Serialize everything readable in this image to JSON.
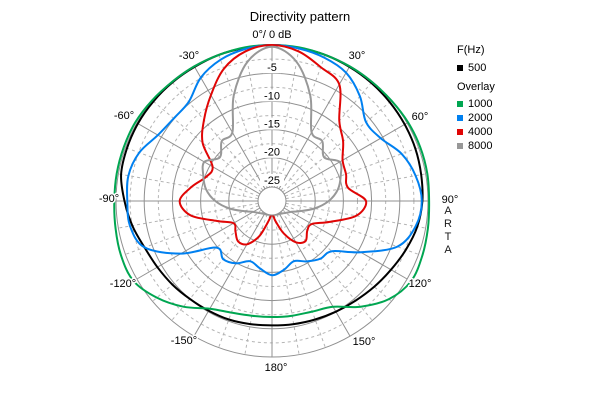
{
  "title": "Directivity pattern",
  "apex_label": "0°/ 0 dB",
  "brand_mark": "ARTA",
  "colors": {
    "background": "#ffffff",
    "grid_major": "#909090",
    "grid_minor": "#b5b5b5",
    "text": "#000000",
    "series_500": "#000000",
    "series_1000": "#00a651",
    "series_2000": "#0080f0",
    "series_4000": "#e00505",
    "series_8000": "#989898"
  },
  "legend": {
    "freq_header": "F(Hz)",
    "freq_items": [
      {
        "label": "500",
        "color": "#000000"
      }
    ],
    "overlay_header": "Overlay",
    "overlay_items": [
      {
        "label": "1000",
        "color": "#00a651"
      },
      {
        "label": "2000",
        "color": "#0080f0"
      },
      {
        "label": "4000",
        "color": "#e00505"
      },
      {
        "label": "8000",
        "color": "#989898"
      }
    ]
  },
  "chart_data": {
    "type": "line",
    "polar": true,
    "title": "Directivity pattern",
    "apex_label": "0°/ 0 dB",
    "units": {
      "angle": "deg",
      "radial": "dB"
    },
    "range_db": [
      0,
      -25
    ],
    "grid": {
      "major_ring_db": 5,
      "minor_ring_db": 2.5,
      "major_spoke_deg": 30,
      "minor_spoke_deg": 10
    },
    "radial_ticks": [
      {
        "db": -5,
        "text": "-5"
      },
      {
        "db": -10,
        "text": "-10"
      },
      {
        "db": -15,
        "text": "-15"
      },
      {
        "db": -20,
        "text": "-20"
      },
      {
        "db": -25,
        "text": "-25"
      }
    ],
    "angle_labels": [
      {
        "angle": -30,
        "text": "-30°"
      },
      {
        "angle": 30,
        "text": "30°"
      },
      {
        "angle": -60,
        "text": "-60°"
      },
      {
        "angle": 60,
        "text": "60°"
      },
      {
        "angle": -90,
        "text": "-90°"
      },
      {
        "angle": 90,
        "text": "90°"
      },
      {
        "angle": -120,
        "text": "-120°"
      },
      {
        "angle": 120,
        "text": "120°"
      },
      {
        "angle": -150,
        "text": "-150°"
      },
      {
        "angle": 150,
        "text": "150°"
      },
      {
        "angle": 180,
        "text": "180°"
      }
    ],
    "angles_deg": [
      -180,
      -170,
      -160,
      -150,
      -140,
      -130,
      -120,
      -110,
      -100,
      -90,
      -80,
      -70,
      -60,
      -50,
      -40,
      -30,
      -20,
      -10,
      0,
      10,
      20,
      30,
      40,
      50,
      60,
      70,
      80,
      90,
      100,
      110,
      120,
      130,
      140,
      150,
      160,
      170,
      180
    ],
    "series": [
      {
        "name": "500",
        "color": "#000000",
        "values": [
          -5.6,
          -5.5,
          -5.3,
          -5.2,
          -5.0,
          -4.6,
          -4.2,
          -3.6,
          -2.5,
          -1.5,
          -0.5,
          -0.3,
          -0.2,
          -0.2,
          -0.2,
          -0.2,
          -0.1,
          -0.1,
          0,
          -0.1,
          -0.1,
          -0.2,
          -0.3,
          -0.4,
          -0.5,
          -0.6,
          -0.8,
          -1.0,
          -1.5,
          -2.4,
          -3.3,
          -4.0,
          -4.6,
          -5.0,
          -5.3,
          -5.5,
          -5.6
        ]
      },
      {
        "name": "1000",
        "color": "#00a651",
        "values": [
          -7.1,
          -7.0,
          -6.6,
          -5.6,
          -3.2,
          -1.0,
          0.7,
          0.8,
          0.5,
          0.3,
          0.3,
          0.3,
          0.3,
          0.1,
          -0.1,
          -0.1,
          -0.1,
          0,
          0,
          0,
          -0.1,
          -0.1,
          -0.1,
          0,
          0.2,
          0.3,
          0.3,
          0.2,
          0.4,
          0.7,
          0.8,
          -0.6,
          -3.2,
          -6.0,
          -6.8,
          -7.0,
          -7.1
        ]
      },
      {
        "name": "2000",
        "color": "#0080f0",
        "values": [
          -14.5,
          -15.5,
          -16.3,
          -14.9,
          -14.2,
          -14.8,
          -9.0,
          -3.6,
          -2.1,
          -2.0,
          -1.8,
          -2.6,
          -4.3,
          -4.9,
          -4.7,
          -2.4,
          -1.0,
          -0.3,
          0,
          -0.2,
          -0.6,
          -1.4,
          -3.4,
          -5.9,
          -5.4,
          -3.2,
          -1.8,
          -1.1,
          -1.8,
          -4.0,
          -9.5,
          -13.8,
          -14.3,
          -15.3,
          -16.3,
          -15.3,
          -14.5
        ]
      },
      {
        "name": "4000",
        "color": "#e00505",
        "values": [
          -25.5,
          -24.0,
          -21.0,
          -18.8,
          -18.3,
          -19.2,
          -19.8,
          -17.3,
          -13.0,
          -11.3,
          -13.2,
          -15.2,
          -15.5,
          -11.6,
          -8.9,
          -6.0,
          -2.7,
          -0.7,
          0,
          -0.7,
          -2.4,
          -3.8,
          -9.1,
          -11.2,
          -13.2,
          -13.7,
          -14.0,
          -11.0,
          -12.5,
          -16.8,
          -19.5,
          -19.5,
          -18.4,
          -19.2,
          -21.5,
          -24.0,
          -25.5
        ]
      },
      {
        "name": "8000",
        "color": "#989898",
        "values": [
          -25.3,
          -25.2,
          -25.1,
          -25.0,
          -24.8,
          -24.4,
          -23.8,
          -22.4,
          -20.0,
          -17.6,
          -15.8,
          -14.7,
          -13.8,
          -15.6,
          -13.8,
          -13.6,
          -7.8,
          -2.6,
          -0.3,
          -2.6,
          -7.8,
          -13.6,
          -13.8,
          -15.6,
          -13.8,
          -14.7,
          -15.8,
          -17.6,
          -20.0,
          -22.4,
          -23.8,
          -24.4,
          -24.8,
          -25.0,
          -25.1,
          -25.2,
          -25.3
        ]
      }
    ]
  }
}
